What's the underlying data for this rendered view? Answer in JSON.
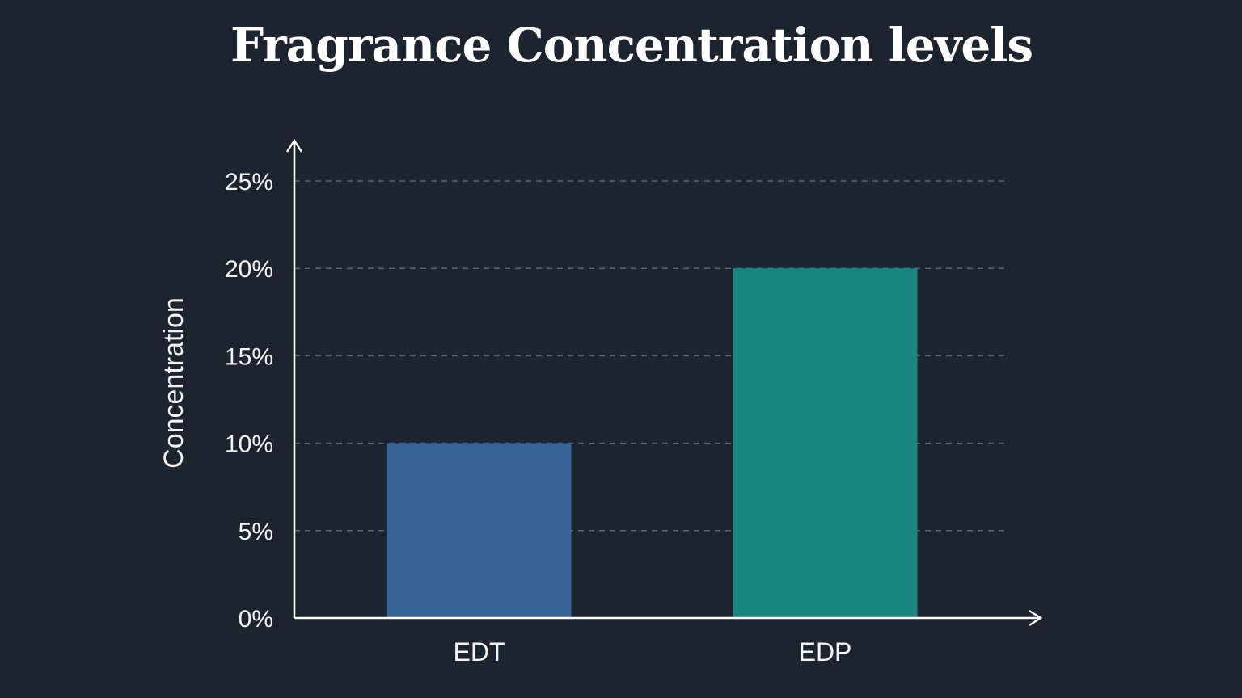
{
  "chart_data": {
    "type": "bar",
    "title": "Fragrance Concentration levels",
    "xlabel": "",
    "ylabel": "Concentration",
    "categories": [
      "EDT",
      "EDP"
    ],
    "values": [
      10,
      20
    ],
    "ylim": [
      0,
      25
    ],
    "yticks": [
      0,
      5,
      10,
      15,
      20,
      25
    ],
    "ytick_suffix": "%",
    "grid": "horizontal dashed",
    "colors": {
      "EDT": "#376598",
      "EDP": "#19867f",
      "background": "#1c2430",
      "axis": "#ffffff",
      "grid": "#5c6670"
    }
  }
}
